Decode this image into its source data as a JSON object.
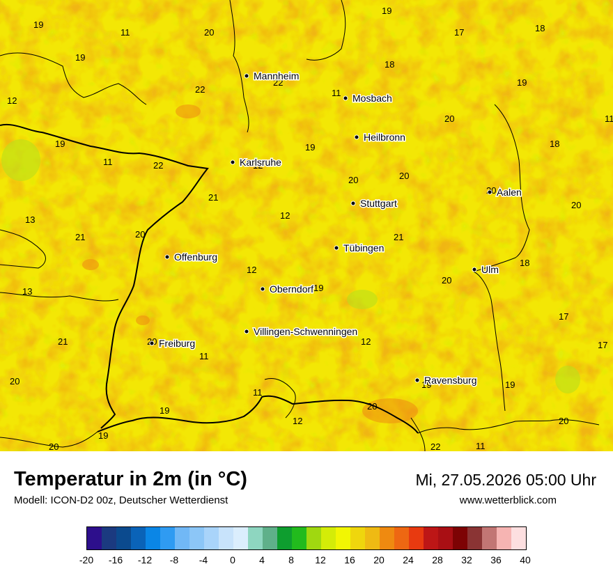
{
  "title": "Temperatur in 2m (in °C)",
  "model": "Modell: ICON-D2 00z, Deutscher Wetterdienst",
  "datetime": "Mi, 27.05.2026 05:00 Uhr",
  "website": "www.wetterblick.com",
  "legend": {
    "ticks": [
      "-20",
      "-16",
      "-12",
      "-8",
      "-4",
      "0",
      "4",
      "8",
      "12",
      "16",
      "20",
      "24",
      "28",
      "32",
      "36",
      "40"
    ],
    "colors": [
      "#2d0f8c",
      "#1b3a80",
      "#0b4a8e",
      "#0a63b8",
      "#0a86e6",
      "#2f9bf2",
      "#71b8f6",
      "#8cc6f7",
      "#a9d4fa",
      "#c8e3fb",
      "#dbeefd",
      "#8ed6c0",
      "#5fb08a",
      "#0e9e2f",
      "#22bb1d",
      "#a0d810",
      "#d4ec08",
      "#f2f603",
      "#efd60d",
      "#efba13",
      "#ef8a10",
      "#ee6712",
      "#e83a10",
      "#bd1616",
      "#a90f14",
      "#7d0304",
      "#8a3434",
      "#c27674",
      "#f6b4b2",
      "#fddfe0"
    ]
  },
  "cities": [
    {
      "name": "Mannheim"
    },
    {
      "name": "Mosbach"
    },
    {
      "name": "Heilbronn"
    },
    {
      "name": "Karlsruhe"
    },
    {
      "name": "Stuttgart"
    },
    {
      "name": "Aalen"
    },
    {
      "name": "Tübingen"
    },
    {
      "name": "Offenburg"
    },
    {
      "name": "Ulm"
    },
    {
      "name": "Oberndorf"
    },
    {
      "name": "Villingen-Schwenningen"
    },
    {
      "name": "Freiburg"
    },
    {
      "name": "Ravensburg"
    }
  ],
  "values": [
    "19",
    "11",
    "20",
    "19",
    "17",
    "18",
    "19",
    "12",
    "18",
    "19",
    "22",
    "22",
    "11",
    "19",
    "20",
    "11",
    "18",
    "19",
    "11",
    "22",
    "12",
    "20",
    "20",
    "20",
    "20",
    "13",
    "21",
    "21",
    "12",
    "20",
    "21",
    "12",
    "20",
    "18",
    "13",
    "19",
    "17",
    "17",
    "21",
    "20",
    "12",
    "11",
    "20",
    "19",
    "11",
    "19",
    "19",
    "20",
    "12",
    "20",
    "19",
    "20",
    "22",
    "11"
  ]
}
